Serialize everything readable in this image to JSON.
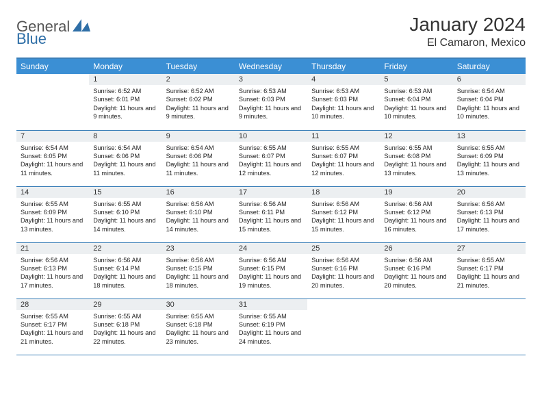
{
  "logo": {
    "general": "General",
    "blue": "Blue"
  },
  "header": {
    "title": "January 2024",
    "location": "El Camaron, Mexico"
  },
  "colors": {
    "header_bg": "#3b8fd4",
    "header_text": "#ffffff",
    "border": "#3b7fb8",
    "daynum_bg": "#eceff1",
    "text": "#222222",
    "logo_general": "#555555",
    "logo_blue": "#2f6fa7"
  },
  "weekdays": [
    "Sunday",
    "Monday",
    "Tuesday",
    "Wednesday",
    "Thursday",
    "Friday",
    "Saturday"
  ],
  "weeks": [
    [
      null,
      {
        "n": "1",
        "sr": "6:52 AM",
        "ss": "6:01 PM",
        "dl": "11 hours and 9 minutes."
      },
      {
        "n": "2",
        "sr": "6:52 AM",
        "ss": "6:02 PM",
        "dl": "11 hours and 9 minutes."
      },
      {
        "n": "3",
        "sr": "6:53 AM",
        "ss": "6:03 PM",
        "dl": "11 hours and 9 minutes."
      },
      {
        "n": "4",
        "sr": "6:53 AM",
        "ss": "6:03 PM",
        "dl": "11 hours and 10 minutes."
      },
      {
        "n": "5",
        "sr": "6:53 AM",
        "ss": "6:04 PM",
        "dl": "11 hours and 10 minutes."
      },
      {
        "n": "6",
        "sr": "6:54 AM",
        "ss": "6:04 PM",
        "dl": "11 hours and 10 minutes."
      }
    ],
    [
      {
        "n": "7",
        "sr": "6:54 AM",
        "ss": "6:05 PM",
        "dl": "11 hours and 11 minutes."
      },
      {
        "n": "8",
        "sr": "6:54 AM",
        "ss": "6:06 PM",
        "dl": "11 hours and 11 minutes."
      },
      {
        "n": "9",
        "sr": "6:54 AM",
        "ss": "6:06 PM",
        "dl": "11 hours and 11 minutes."
      },
      {
        "n": "10",
        "sr": "6:55 AM",
        "ss": "6:07 PM",
        "dl": "11 hours and 12 minutes."
      },
      {
        "n": "11",
        "sr": "6:55 AM",
        "ss": "6:07 PM",
        "dl": "11 hours and 12 minutes."
      },
      {
        "n": "12",
        "sr": "6:55 AM",
        "ss": "6:08 PM",
        "dl": "11 hours and 13 minutes."
      },
      {
        "n": "13",
        "sr": "6:55 AM",
        "ss": "6:09 PM",
        "dl": "11 hours and 13 minutes."
      }
    ],
    [
      {
        "n": "14",
        "sr": "6:55 AM",
        "ss": "6:09 PM",
        "dl": "11 hours and 13 minutes."
      },
      {
        "n": "15",
        "sr": "6:55 AM",
        "ss": "6:10 PM",
        "dl": "11 hours and 14 minutes."
      },
      {
        "n": "16",
        "sr": "6:56 AM",
        "ss": "6:10 PM",
        "dl": "11 hours and 14 minutes."
      },
      {
        "n": "17",
        "sr": "6:56 AM",
        "ss": "6:11 PM",
        "dl": "11 hours and 15 minutes."
      },
      {
        "n": "18",
        "sr": "6:56 AM",
        "ss": "6:12 PM",
        "dl": "11 hours and 15 minutes."
      },
      {
        "n": "19",
        "sr": "6:56 AM",
        "ss": "6:12 PM",
        "dl": "11 hours and 16 minutes."
      },
      {
        "n": "20",
        "sr": "6:56 AM",
        "ss": "6:13 PM",
        "dl": "11 hours and 17 minutes."
      }
    ],
    [
      {
        "n": "21",
        "sr": "6:56 AM",
        "ss": "6:13 PM",
        "dl": "11 hours and 17 minutes."
      },
      {
        "n": "22",
        "sr": "6:56 AM",
        "ss": "6:14 PM",
        "dl": "11 hours and 18 minutes."
      },
      {
        "n": "23",
        "sr": "6:56 AM",
        "ss": "6:15 PM",
        "dl": "11 hours and 18 minutes."
      },
      {
        "n": "24",
        "sr": "6:56 AM",
        "ss": "6:15 PM",
        "dl": "11 hours and 19 minutes."
      },
      {
        "n": "25",
        "sr": "6:56 AM",
        "ss": "6:16 PM",
        "dl": "11 hours and 20 minutes."
      },
      {
        "n": "26",
        "sr": "6:56 AM",
        "ss": "6:16 PM",
        "dl": "11 hours and 20 minutes."
      },
      {
        "n": "27",
        "sr": "6:55 AM",
        "ss": "6:17 PM",
        "dl": "11 hours and 21 minutes."
      }
    ],
    [
      {
        "n": "28",
        "sr": "6:55 AM",
        "ss": "6:17 PM",
        "dl": "11 hours and 21 minutes."
      },
      {
        "n": "29",
        "sr": "6:55 AM",
        "ss": "6:18 PM",
        "dl": "11 hours and 22 minutes."
      },
      {
        "n": "30",
        "sr": "6:55 AM",
        "ss": "6:18 PM",
        "dl": "11 hours and 23 minutes."
      },
      {
        "n": "31",
        "sr": "6:55 AM",
        "ss": "6:19 PM",
        "dl": "11 hours and 24 minutes."
      },
      null,
      null,
      null
    ]
  ],
  "labels": {
    "sunrise": "Sunrise:",
    "sunset": "Sunset:",
    "daylight": "Daylight:"
  }
}
